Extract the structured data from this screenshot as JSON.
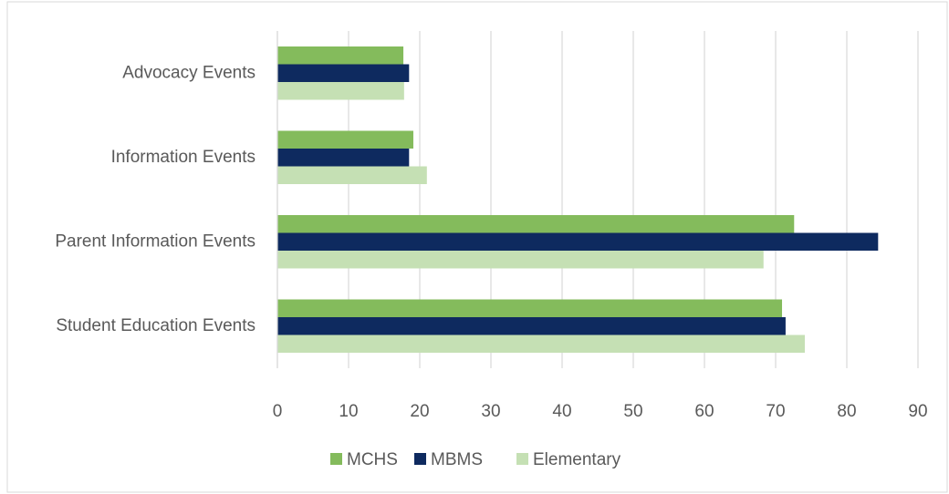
{
  "chart_data": {
    "type": "bar",
    "orientation": "horizontal",
    "categories": [
      "Advocacy Events",
      "Information Events",
      "Parent Information Events",
      "Student Education Events"
    ],
    "series": [
      {
        "name": "MCHS",
        "color": "#84bb5c",
        "values": [
          17.7,
          19.1,
          72.6,
          70.9
        ]
      },
      {
        "name": "MBMS",
        "color": "#0e2a5f",
        "values": [
          18.5,
          18.5,
          84.4,
          71.4
        ]
      },
      {
        "name": "Elementary",
        "color": "#c5e0b4",
        "values": [
          17.8,
          21.0,
          68.3,
          74.1
        ]
      }
    ],
    "xlim": [
      0,
      90
    ],
    "xticks": [
      0,
      10,
      20,
      30,
      40,
      50,
      60,
      70,
      80,
      90
    ],
    "grid": true,
    "legend": "bottom"
  }
}
